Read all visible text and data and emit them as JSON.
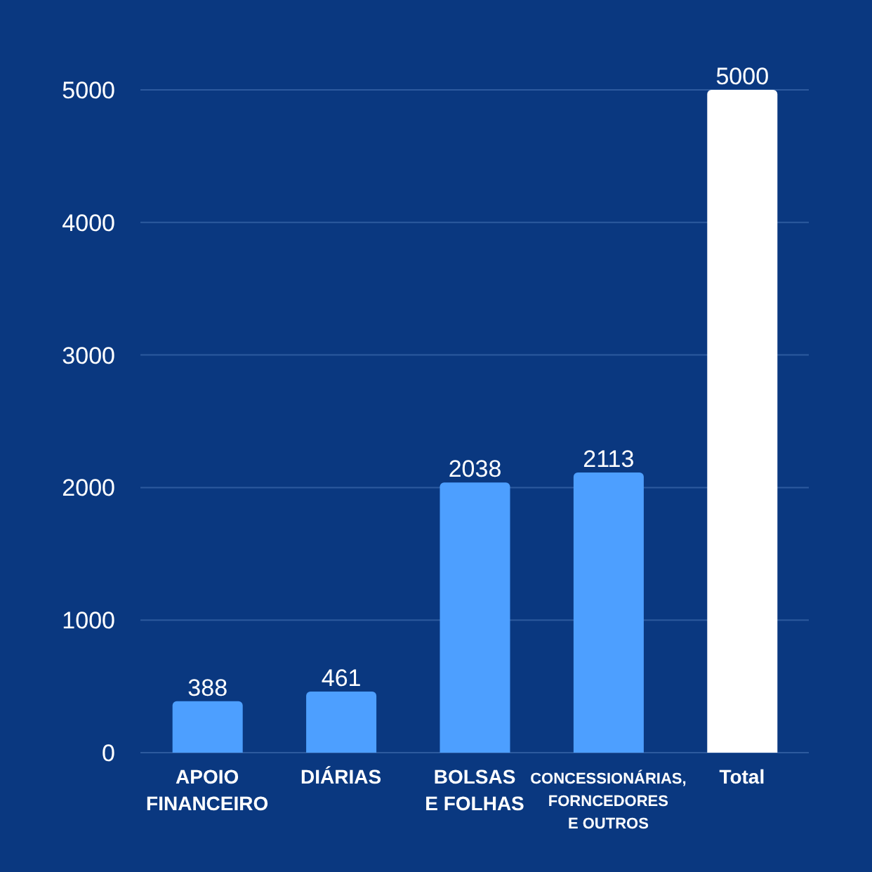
{
  "chart_data": {
    "type": "bar",
    "categories": [
      "APOIO\nFINANCEIRO",
      "DIÁRIAS",
      "BOLSAS\nE FOLHAS",
      "CONCESSIONÁRIAS,\nFORNCEDORES\nE OUTROS",
      "Total"
    ],
    "values": [
      388,
      461,
      2038,
      2113,
      5000
    ],
    "colors": [
      "#4d9fff",
      "#4d9fff",
      "#4d9fff",
      "#4d9fff",
      "#ffffff"
    ],
    "ylim": [
      0,
      5000
    ],
    "yticks": [
      0,
      1000,
      2000,
      3000,
      4000,
      5000
    ],
    "grid": "y",
    "data_labels": true
  }
}
